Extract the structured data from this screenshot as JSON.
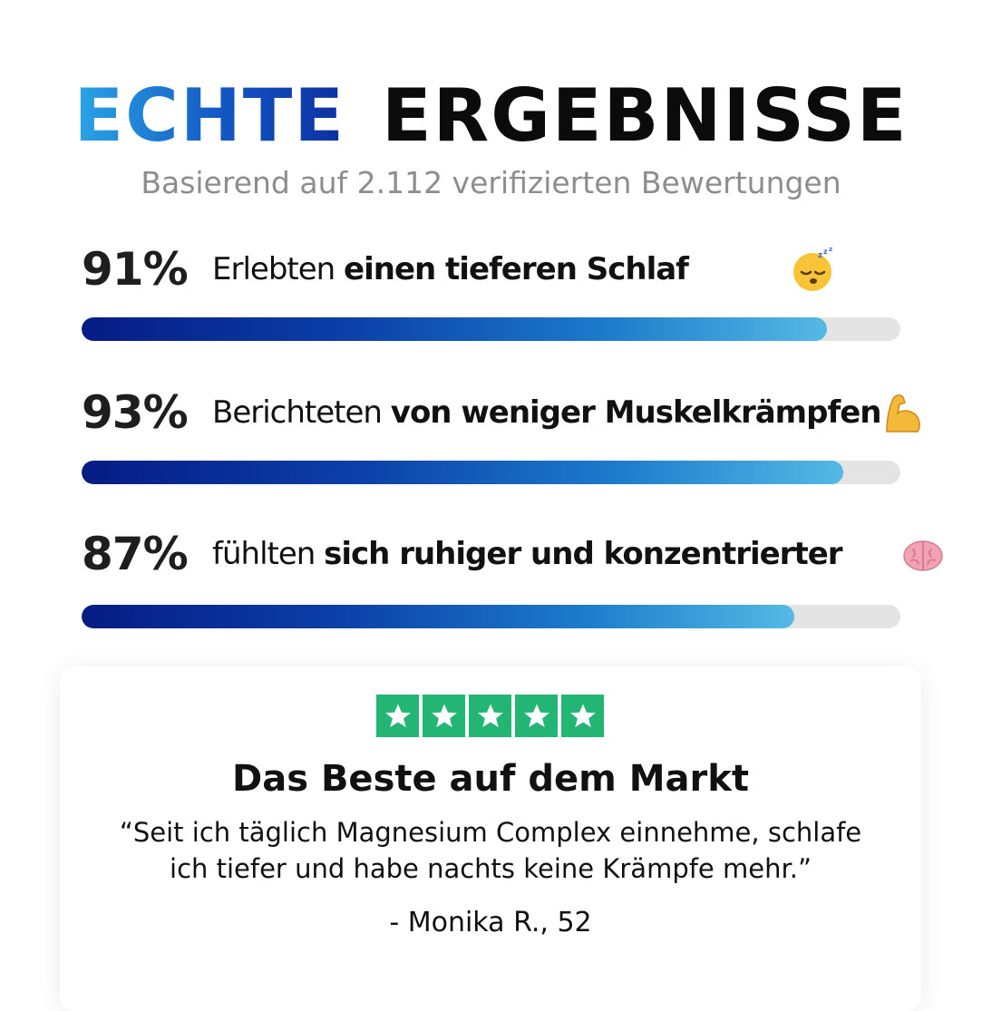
{
  "headline": {
    "accent": "ECHTE",
    "main": "ERGEBNISSE"
  },
  "subtitle": "Basierend auf 2.112 verifizierten Bewertungen",
  "stats": [
    {
      "percent_label": "91%",
      "value": 91,
      "text": "Erlebten",
      "bold": "einen tieferen Schlaf",
      "icon": "sleeping-face-emoji"
    },
    {
      "percent_label": "93%",
      "value": 93,
      "text": "Berichteten",
      "bold": "von weniger Muskelkrämpfen",
      "icon": "flexed-biceps-emoji"
    },
    {
      "percent_label": "87%",
      "value": 87,
      "text": "fühlten",
      "bold": "sich ruhiger und konzentrierter",
      "icon": "brain-emoji"
    }
  ],
  "review": {
    "rating": 5,
    "title": "Das Beste auf dem Markt",
    "quote_line1": "“Seit ich täglich Magnesium Complex einnehme, schlafe",
    "quote_line2": "ich tiefer und habe nachts keine Krämpfe mehr.”",
    "author": "- Monika R., 52"
  },
  "colors": {
    "accent_gradient": [
      "#2aa6e6",
      "#0c2fa0"
    ],
    "bar_gradient": [
      "#061c84",
      "#55b9e4"
    ],
    "bar_track": "#e4e4e4",
    "star_green": "#22b573"
  }
}
